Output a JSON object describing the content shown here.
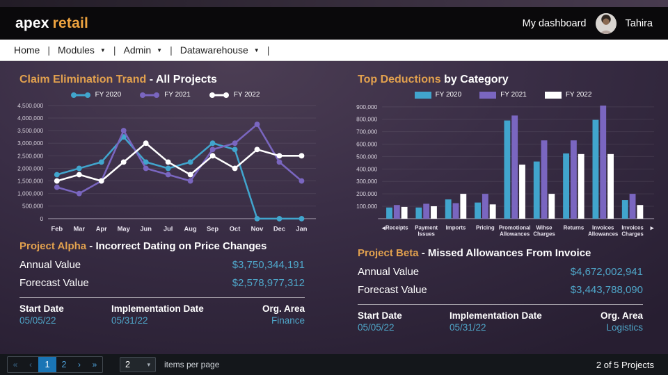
{
  "header": {
    "logo_primary": "apex",
    "logo_secondary": "retail",
    "my_dashboard_label": "My dashboard",
    "user_name": "Tahira"
  },
  "nav": {
    "separator": "|",
    "caret_icon": "▼",
    "items": [
      {
        "label": "Home"
      },
      {
        "label": "Modules"
      },
      {
        "label": "Admin"
      },
      {
        "label": "Datawarehouse"
      }
    ]
  },
  "colors": {
    "accent_orange": "#e2a14e",
    "teal_value": "#4fa6c9",
    "fy2020": "#41a5cd",
    "fy2021": "#7a66c0",
    "fy2022": "#ffffff",
    "active_page_blue": "#1a75b5"
  },
  "chart_data": [
    {
      "type": "line",
      "title_accent": "Claim Elimination Trand",
      "title_rest": " - All Projects",
      "categories": [
        "Feb",
        "Mar",
        "Apr",
        "May",
        "Jun",
        "Jul",
        "Aug",
        "Sep",
        "Oct",
        "Nov",
        "Dec",
        "Jan"
      ],
      "series": [
        {
          "name": "FY 2020",
          "color": "#41a5cd",
          "values": [
            1750000,
            2000000,
            2250000,
            3250000,
            2250000,
            2000000,
            2250000,
            3000000,
            2750000,
            0,
            0,
            0
          ]
        },
        {
          "name": "FY 2021",
          "color": "#7a66c0",
          "values": [
            1250000,
            1000000,
            1500000,
            3500000,
            2000000,
            1750000,
            1500000,
            2750000,
            3000000,
            3750000,
            2250000,
            1500000
          ]
        },
        {
          "name": "FY 2022",
          "color": "#ffffff",
          "values": [
            1500000,
            1750000,
            1500000,
            2250000,
            3000000,
            2250000,
            1750000,
            2500000,
            2000000,
            2750000,
            2500000,
            2500000
          ]
        }
      ],
      "ylim": [
        0,
        4500000
      ],
      "ytick_step": 500000,
      "show_zero_label": true,
      "grid": true,
      "legend_position": "top"
    },
    {
      "type": "bar",
      "title_accent": "Top Deductions",
      "title_rest": " by Category",
      "categories": [
        [
          "Receipts"
        ],
        [
          "Payment",
          "Issues"
        ],
        [
          "Imports"
        ],
        [
          "Pricing"
        ],
        [
          "Promotional",
          "Allowances"
        ],
        [
          "Wihse",
          "Charges"
        ],
        [
          "Returns"
        ],
        [
          "Invoices",
          "Allowances"
        ],
        [
          "Invoices",
          "Charges"
        ]
      ],
      "series": [
        {
          "name": "FY 2020",
          "color": "#41a5cd",
          "values": [
            90000,
            90000,
            155000,
            130000,
            790000,
            460000,
            525000,
            795000,
            150000
          ]
        },
        {
          "name": "FY 2021",
          "color": "#7a66c0",
          "values": [
            110000,
            120000,
            125000,
            200000,
            830000,
            630000,
            630000,
            910000,
            200000
          ]
        },
        {
          "name": "FY 2022",
          "color": "#ffffff",
          "values": [
            95000,
            100000,
            200000,
            115000,
            435000,
            200000,
            520000,
            520000,
            110000
          ]
        }
      ],
      "ylim": [
        0,
        900000
      ],
      "ytick_step": 100000,
      "show_zero_label": false,
      "grid": true,
      "scroll_left_icon": "◀",
      "scroll_right_icon": "▶",
      "legend_position": "top"
    }
  ],
  "projects": [
    {
      "name": "Project Alpha",
      "description": " - Incorrect Dating on Price Changes",
      "annual_label": "Annual Value",
      "annual_value": "$3,750,344,191",
      "forecast_label": "Forecast Value",
      "forecast_value": "$2,578,977,312",
      "start_label": "Start Date",
      "start_value": "05/05/22",
      "impl_label": "Implementation Date",
      "impl_value": "05/31/22",
      "org_label": "Org. Area",
      "org_value": "Finance"
    },
    {
      "name": "Project Beta",
      "description": " - Missed Allowances From Invoice",
      "annual_label": "Annual Value",
      "annual_value": "$4,672,002,941",
      "forecast_label": "Forecast Value",
      "forecast_value": "$3,443,788,090",
      "start_label": "Start Date",
      "start_value": "05/05/22",
      "impl_label": "Implementation Date",
      "impl_value": "05/31/22",
      "org_label": "Org. Area",
      "org_value": "Logistics"
    }
  ],
  "footer": {
    "first_icon": "«",
    "prev_icon": "‹",
    "pages": [
      "1",
      "2"
    ],
    "active_page": "1",
    "next_icon": "›",
    "last_icon": "»",
    "page_size": "2",
    "page_size_caret": "▾",
    "items_per_page_label": "items per page",
    "summary": "2 of 5 Projects"
  }
}
